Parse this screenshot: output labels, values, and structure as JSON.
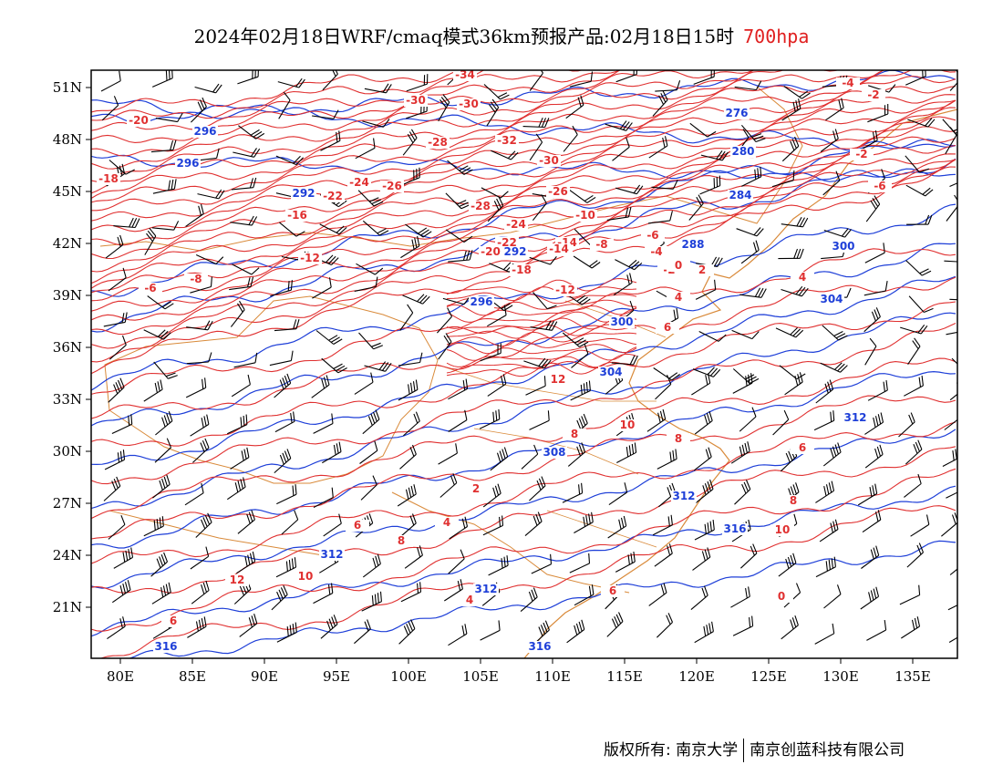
{
  "title": {
    "main": "2024年02月18日WRF/cmaq模式36km预报产品:02月18日15时",
    "level": "700hpa"
  },
  "axes": {
    "x_ticks": [
      "80E",
      "85E",
      "90E",
      "95E",
      "100E",
      "105E",
      "110E",
      "115E",
      "120E",
      "125E",
      "130E",
      "135E"
    ],
    "y_ticks": [
      "51N",
      "48N",
      "45N",
      "42N",
      "39N",
      "36N",
      "33N",
      "30N",
      "27N",
      "24N",
      "21N"
    ]
  },
  "colors": {
    "temperature": "#e03030",
    "theta": "#1e3fd8",
    "boundary": "#d98a3a",
    "wind": "#000000",
    "title_level": "#e02020"
  },
  "temperature_labels": [
    "-34",
    "-30",
    "-32",
    "-30",
    "-28",
    "-26",
    "-24",
    "-22",
    "-20",
    "-18",
    "-16",
    "-14",
    "-12",
    "-10",
    "-8",
    "-6",
    "-4",
    "-2",
    "0",
    "2",
    "4",
    "6",
    "8",
    "10",
    "12",
    "-20",
    "-18",
    "-16",
    "-14",
    "-12",
    "-8",
    "-6",
    "-4",
    "-2",
    "-22",
    "-24",
    "-26",
    "-28",
    "-30",
    "-2",
    "-6",
    "4",
    "6",
    "8",
    "10",
    "0",
    "2",
    "4",
    "6",
    "8",
    "10",
    "12",
    "6",
    "4",
    "6",
    "8"
  ],
  "theta_labels": [
    "296",
    "296",
    "292",
    "276",
    "280",
    "284",
    "288",
    "300",
    "292",
    "296",
    "304",
    "300",
    "304",
    "312",
    "312",
    "308",
    "316",
    "312",
    "312",
    "316",
    "316"
  ],
  "footer": {
    "left": "版权所有: 南京大学",
    "right": "南京创蓝科技有限公司"
  }
}
